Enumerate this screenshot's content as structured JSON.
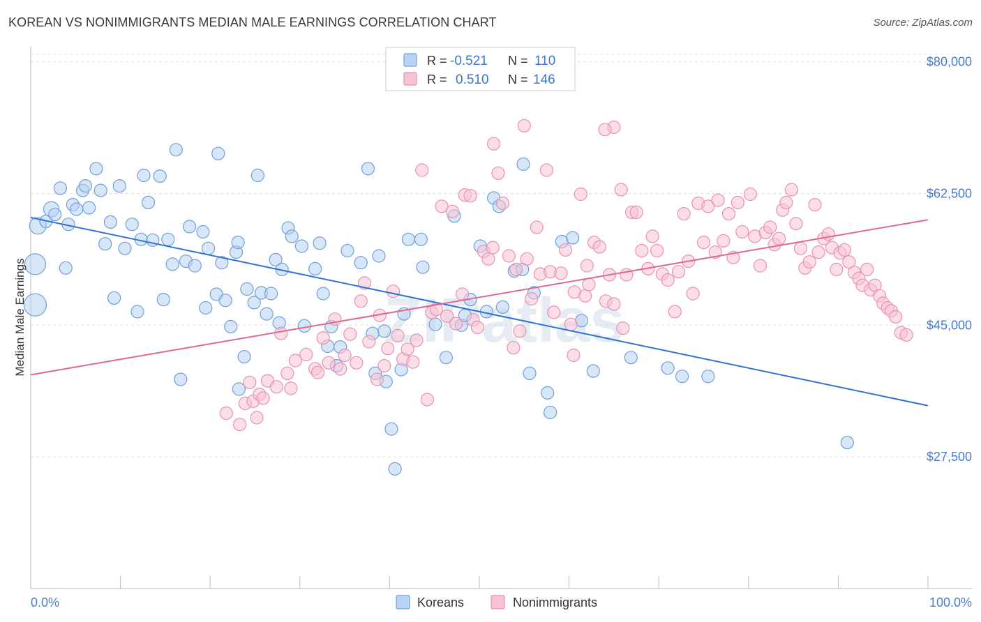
{
  "title": "KOREAN VS NONIMMIGRANTS MEDIAN MALE EARNINGS CORRELATION CHART",
  "source": "Source: ZipAtlas.com",
  "watermark": "ZIPatlas",
  "colors": {
    "koreans_fill": "#b8d3f3",
    "koreans_stroke": "#6f9fdc",
    "koreans_line": "#2f74d0",
    "nonimm_fill": "#f7c2d3",
    "nonimm_stroke": "#e892ae",
    "nonimm_line": "#e06790",
    "tick_label": "#4a7cc9",
    "grid": "#dddddd"
  },
  "legend": {
    "rows": [
      {
        "r_label": "R =",
        "r_value": "-0.521",
        "n_label": "N =",
        "n_value": "110"
      },
      {
        "r_label": "R =",
        "r_value": "0.510",
        "n_label": "N =",
        "n_value": "146"
      }
    ]
  },
  "chart_data": {
    "type": "scatter",
    "title": "KOREAN VS NONIMMIGRANTS MEDIAN MALE EARNINGS CORRELATION CHART",
    "xlabel": "",
    "ylabel": "Median Male Earnings",
    "xlim": [
      0,
      100
    ],
    "ylim": [
      10000,
      82000
    ],
    "x_tick_labels": [
      "0.0%",
      "100.0%"
    ],
    "y_ticks": [
      27500,
      45000,
      62500,
      80000
    ],
    "y_tick_labels": [
      "$27,500",
      "$45,000",
      "$62,500",
      "$80,000"
    ],
    "grid": true,
    "legend_position": "top-center",
    "series": [
      {
        "name": "Koreans",
        "trend": {
          "x": [
            0,
            100
          ],
          "y": [
            59300,
            34300
          ]
        },
        "points": [
          [
            0.5,
            47700
          ],
          [
            0.5,
            53100
          ],
          [
            0.8,
            58200
          ],
          [
            1.7,
            58800
          ],
          [
            2.3,
            60400
          ],
          [
            2.7,
            59700
          ],
          [
            3.3,
            63200
          ],
          [
            3.9,
            52600
          ],
          [
            4.2,
            58400
          ],
          [
            4.7,
            61000
          ],
          [
            5.1,
            60400
          ],
          [
            5.8,
            62900
          ],
          [
            6.1,
            63500
          ],
          [
            6.5,
            60600
          ],
          [
            7.3,
            65800
          ],
          [
            7.8,
            62900
          ],
          [
            8.3,
            55800
          ],
          [
            8.9,
            58700
          ],
          [
            9.3,
            48600
          ],
          [
            9.9,
            63500
          ],
          [
            10.5,
            55200
          ],
          [
            11.3,
            58400
          ],
          [
            11.9,
            46800
          ],
          [
            12.3,
            56400
          ],
          [
            12.6,
            64900
          ],
          [
            13.1,
            61300
          ],
          [
            13.6,
            56300
          ],
          [
            14.4,
            64800
          ],
          [
            14.8,
            48400
          ],
          [
            15.3,
            56400
          ],
          [
            15.8,
            53100
          ],
          [
            16.2,
            68300
          ],
          [
            16.7,
            37800
          ],
          [
            17.3,
            53500
          ],
          [
            17.7,
            58100
          ],
          [
            18.3,
            52900
          ],
          [
            19.2,
            57400
          ],
          [
            19.5,
            47300
          ],
          [
            19.8,
            55200
          ],
          [
            20.7,
            49100
          ],
          [
            20.9,
            67800
          ],
          [
            21.3,
            53300
          ],
          [
            21.7,
            48300
          ],
          [
            22.3,
            44800
          ],
          [
            22.9,
            54700
          ],
          [
            23.1,
            56000
          ],
          [
            23.8,
            40800
          ],
          [
            24.1,
            49800
          ],
          [
            24.9,
            48000
          ],
          [
            25.3,
            64900
          ],
          [
            25.7,
            49300
          ],
          [
            26.3,
            46500
          ],
          [
            26.8,
            49200
          ],
          [
            27.3,
            53700
          ],
          [
            27.7,
            45300
          ],
          [
            28.0,
            52400
          ],
          [
            28.7,
            57900
          ],
          [
            29.1,
            56800
          ],
          [
            30.2,
            55500
          ],
          [
            30.5,
            44900
          ],
          [
            31.7,
            52500
          ],
          [
            32.2,
            55900
          ],
          [
            32.6,
            49200
          ],
          [
            33.1,
            42200
          ],
          [
            33.5,
            44800
          ],
          [
            34.1,
            39600
          ],
          [
            34.5,
            42100
          ],
          [
            35.3,
            54900
          ],
          [
            36.8,
            53300
          ],
          [
            37.6,
            65800
          ],
          [
            38.1,
            43900
          ],
          [
            38.4,
            38600
          ],
          [
            38.8,
            54200
          ],
          [
            39.6,
            37500
          ],
          [
            40.2,
            31200
          ],
          [
            40.6,
            25900
          ],
          [
            41.3,
            39100
          ],
          [
            41.6,
            46500
          ],
          [
            42.1,
            56400
          ],
          [
            43.5,
            56400
          ],
          [
            43.7,
            52700
          ],
          [
            45.1,
            45100
          ],
          [
            46.3,
            40700
          ],
          [
            47.2,
            59500
          ],
          [
            48.0,
            45000
          ],
          [
            48.4,
            46300
          ],
          [
            49.0,
            48400
          ],
          [
            50.1,
            55500
          ],
          [
            50.8,
            46800
          ],
          [
            51.6,
            61900
          ],
          [
            52.2,
            60800
          ],
          [
            52.6,
            47400
          ],
          [
            53.9,
            52200
          ],
          [
            54.8,
            52400
          ],
          [
            54.9,
            66400
          ],
          [
            55.6,
            38600
          ],
          [
            56.1,
            49300
          ],
          [
            57.6,
            36000
          ],
          [
            57.9,
            33400
          ],
          [
            59.2,
            56100
          ],
          [
            60.4,
            56600
          ],
          [
            61.4,
            45600
          ],
          [
            62.7,
            38900
          ],
          [
            66.9,
            40700
          ],
          [
            71.0,
            39300
          ],
          [
            72.6,
            38200
          ],
          [
            75.5,
            38200
          ],
          [
            91.0,
            29400
          ],
          [
            39.4,
            44200
          ],
          [
            23.2,
            36500
          ]
        ]
      },
      {
        "name": "Nonimmigrants",
        "trend": {
          "x": [
            0,
            100
          ],
          "y": [
            38400,
            59000
          ]
        },
        "points": [
          [
            21.8,
            33300
          ],
          [
            23.3,
            31800
          ],
          [
            23.9,
            34600
          ],
          [
            24.4,
            37400
          ],
          [
            24.8,
            34900
          ],
          [
            25.5,
            35800
          ],
          [
            25.9,
            35300
          ],
          [
            26.4,
            37600
          ],
          [
            27.4,
            36800
          ],
          [
            27.9,
            43900
          ],
          [
            28.6,
            38600
          ],
          [
            29.0,
            36600
          ],
          [
            29.5,
            40300
          ],
          [
            30.7,
            41100
          ],
          [
            31.7,
            39200
          ],
          [
            32.0,
            38700
          ],
          [
            32.6,
            43300
          ],
          [
            33.2,
            40000
          ],
          [
            33.9,
            45800
          ],
          [
            34.5,
            39200
          ],
          [
            35.0,
            41000
          ],
          [
            35.6,
            43800
          ],
          [
            36.3,
            40000
          ],
          [
            36.8,
            48200
          ],
          [
            37.2,
            50600
          ],
          [
            37.7,
            42800
          ],
          [
            38.6,
            37800
          ],
          [
            38.9,
            46300
          ],
          [
            39.4,
            39600
          ],
          [
            39.8,
            41900
          ],
          [
            40.4,
            49500
          ],
          [
            40.9,
            43600
          ],
          [
            41.5,
            40500
          ],
          [
            42.0,
            41800
          ],
          [
            42.6,
            40100
          ],
          [
            43.0,
            43000
          ],
          [
            43.6,
            65600
          ],
          [
            44.2,
            35100
          ],
          [
            44.7,
            46700
          ],
          [
            45.2,
            47100
          ],
          [
            45.8,
            60800
          ],
          [
            46.4,
            46200
          ],
          [
            47.0,
            60100
          ],
          [
            47.4,
            45200
          ],
          [
            48.1,
            49100
          ],
          [
            48.4,
            62300
          ],
          [
            49.0,
            62200
          ],
          [
            49.3,
            45700
          ],
          [
            49.8,
            44700
          ],
          [
            50.5,
            54800
          ],
          [
            51.0,
            53800
          ],
          [
            51.5,
            55300
          ],
          [
            52.1,
            65200
          ],
          [
            52.6,
            61200
          ],
          [
            53.3,
            54200
          ],
          [
            53.8,
            42000
          ],
          [
            54.1,
            52400
          ],
          [
            54.5,
            44200
          ],
          [
            55.3,
            53800
          ],
          [
            55.8,
            48500
          ],
          [
            56.4,
            58000
          ],
          [
            56.8,
            51800
          ],
          [
            57.5,
            65600
          ],
          [
            57.9,
            52100
          ],
          [
            58.3,
            46700
          ],
          [
            59.1,
            51900
          ],
          [
            59.6,
            55000
          ],
          [
            60.2,
            45100
          ],
          [
            60.6,
            49400
          ],
          [
            61.3,
            62400
          ],
          [
            61.8,
            48900
          ],
          [
            62.2,
            50400
          ],
          [
            62.8,
            56000
          ],
          [
            63.4,
            55400
          ],
          [
            64.1,
            48200
          ],
          [
            64.5,
            51700
          ],
          [
            65.0,
            47800
          ],
          [
            65.8,
            63000
          ],
          [
            66.4,
            51700
          ],
          [
            67.0,
            60000
          ],
          [
            67.5,
            60000
          ],
          [
            68.1,
            54900
          ],
          [
            68.8,
            52500
          ],
          [
            69.3,
            56800
          ],
          [
            69.8,
            54900
          ],
          [
            70.4,
            51800
          ],
          [
            71.0,
            51000
          ],
          [
            71.8,
            46800
          ],
          [
            72.2,
            52100
          ],
          [
            72.8,
            59800
          ],
          [
            73.3,
            53500
          ],
          [
            73.8,
            49200
          ],
          [
            74.4,
            61200
          ],
          [
            75.0,
            56000
          ],
          [
            75.5,
            60800
          ],
          [
            76.3,
            54700
          ],
          [
            76.6,
            61600
          ],
          [
            77.2,
            56200
          ],
          [
            77.8,
            59800
          ],
          [
            78.3,
            54000
          ],
          [
            78.8,
            61300
          ],
          [
            79.3,
            57400
          ],
          [
            80.2,
            62400
          ],
          [
            80.7,
            56800
          ],
          [
            81.3,
            52900
          ],
          [
            81.9,
            57300
          ],
          [
            82.4,
            58000
          ],
          [
            82.9,
            55700
          ],
          [
            83.4,
            56500
          ],
          [
            83.8,
            60300
          ],
          [
            84.2,
            61300
          ],
          [
            84.8,
            63000
          ],
          [
            85.3,
            58500
          ],
          [
            85.8,
            55200
          ],
          [
            86.3,
            52600
          ],
          [
            86.8,
            53400
          ],
          [
            87.4,
            61000
          ],
          [
            87.8,
            54700
          ],
          [
            88.4,
            56500
          ],
          [
            88.9,
            57100
          ],
          [
            89.3,
            55300
          ],
          [
            89.8,
            52400
          ],
          [
            90.2,
            54600
          ],
          [
            90.7,
            55000
          ],
          [
            91.2,
            53400
          ],
          [
            91.8,
            52000
          ],
          [
            92.3,
            51200
          ],
          [
            92.7,
            50300
          ],
          [
            93.2,
            52400
          ],
          [
            93.6,
            49700
          ],
          [
            94.1,
            50300
          ],
          [
            94.6,
            48900
          ],
          [
            95.0,
            47900
          ],
          [
            95.5,
            47300
          ],
          [
            95.9,
            46900
          ],
          [
            96.4,
            46100
          ],
          [
            97.0,
            44000
          ],
          [
            97.6,
            43700
          ],
          [
            65.0,
            71300
          ],
          [
            51.6,
            69100
          ],
          [
            55.0,
            71500
          ],
          [
            64.0,
            71000
          ],
          [
            60.5,
            41000
          ],
          [
            66.0,
            44600
          ],
          [
            62.0,
            52900
          ],
          [
            25.2,
            32700
          ]
        ]
      }
    ]
  }
}
